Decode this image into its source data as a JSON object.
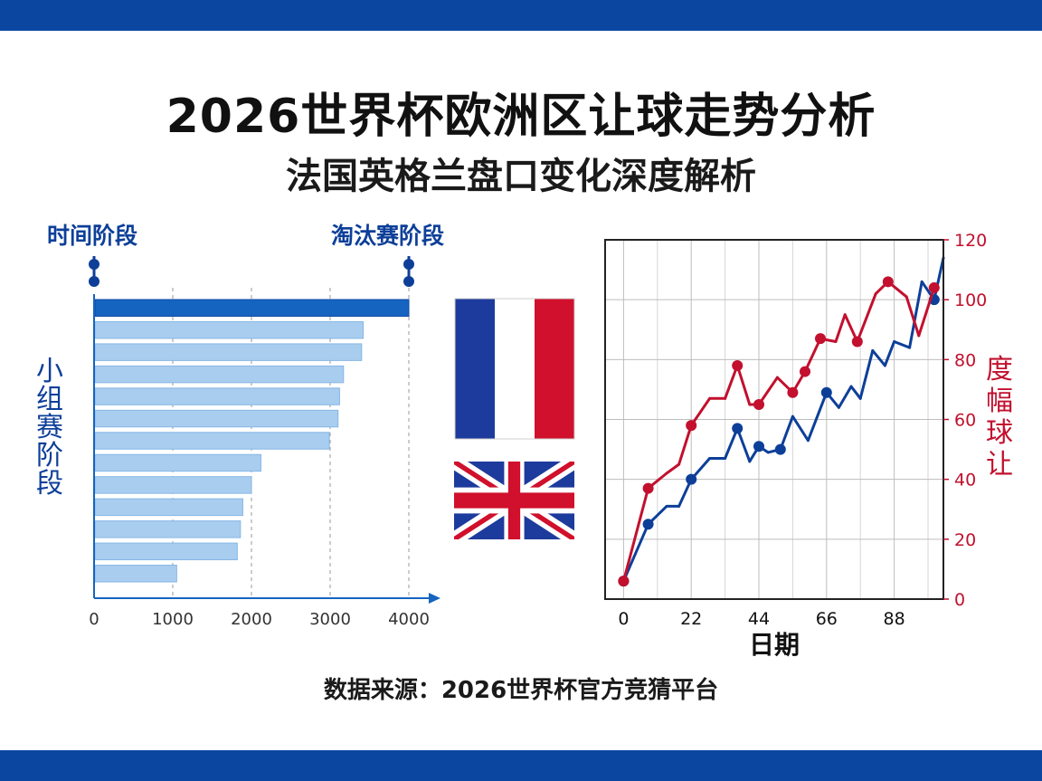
{
  "title": "2026世界杯欧洲区让球走势分析",
  "subtitle": "法国英格兰盘口变化深度解析",
  "source": "数据来源：2026世界杯官方竞猜平台",
  "colors": {
    "blue": "#0d3f99",
    "red": "#c2102e",
    "band": "#0b47a1",
    "bar_light": "#a9cdef",
    "bar_dark": "#1565c0"
  },
  "flags": {
    "france": "france-flag",
    "uk": "union-jack-flag"
  },
  "chart_data": [
    {
      "type": "bar",
      "orientation": "horizontal",
      "timeline_start_label": "时间阶段",
      "timeline_end_label": "淘汰赛阶段",
      "ylabel": "小组赛阶段",
      "xlim": [
        0,
        4000
      ],
      "xticks": [
        "0",
        "1000",
        "2000",
        "3000",
        "4000"
      ],
      "values": [
        4000,
        3420,
        3400,
        3170,
        3120,
        3100,
        2990,
        2120,
        2000,
        1890,
        1860,
        1820,
        1050
      ],
      "grid": "vertical dashed"
    },
    {
      "type": "line",
      "xlabel": "日期",
      "ylabel": "度幅球让",
      "xticks": [
        "0",
        "22",
        "44",
        "66",
        "88"
      ],
      "xlim": [
        -6,
        104
      ],
      "ylim": [
        0,
        120
      ],
      "yticks": [
        "0",
        "20",
        "40",
        "60",
        "80",
        "100",
        "120"
      ],
      "grid": true,
      "series": [
        {
          "color": "#0d3f99",
          "x": [
            0,
            8,
            14,
            18,
            22,
            28,
            33,
            37,
            41,
            44,
            47,
            51,
            55,
            60,
            66,
            70,
            74,
            77,
            81,
            85,
            88,
            93,
            97,
            101,
            104
          ],
          "y": [
            6,
            25,
            31,
            31,
            40,
            47,
            47,
            57,
            46,
            51,
            49,
            50,
            61,
            53,
            69,
            64,
            71,
            67,
            83,
            78,
            86,
            84,
            106,
            100,
            114
          ],
          "markers_at": [
            0,
            8,
            22,
            37,
            44,
            51,
            66,
            101
          ]
        },
        {
          "color": "#c2102e",
          "x": [
            0,
            8,
            14,
            18,
            22,
            28,
            33,
            37,
            41,
            44,
            50,
            55,
            59,
            64,
            69,
            72,
            76,
            82,
            86,
            92,
            96,
            101
          ],
          "y": [
            6,
            37,
            42,
            45,
            58,
            67,
            67,
            78,
            65,
            65,
            74,
            69,
            76,
            87,
            86,
            95,
            86,
            102,
            106,
            101,
            88,
            104
          ],
          "markers_at": [
            0,
            8,
            22,
            37,
            44,
            55,
            59,
            64,
            76,
            86,
            101
          ]
        }
      ]
    }
  ]
}
